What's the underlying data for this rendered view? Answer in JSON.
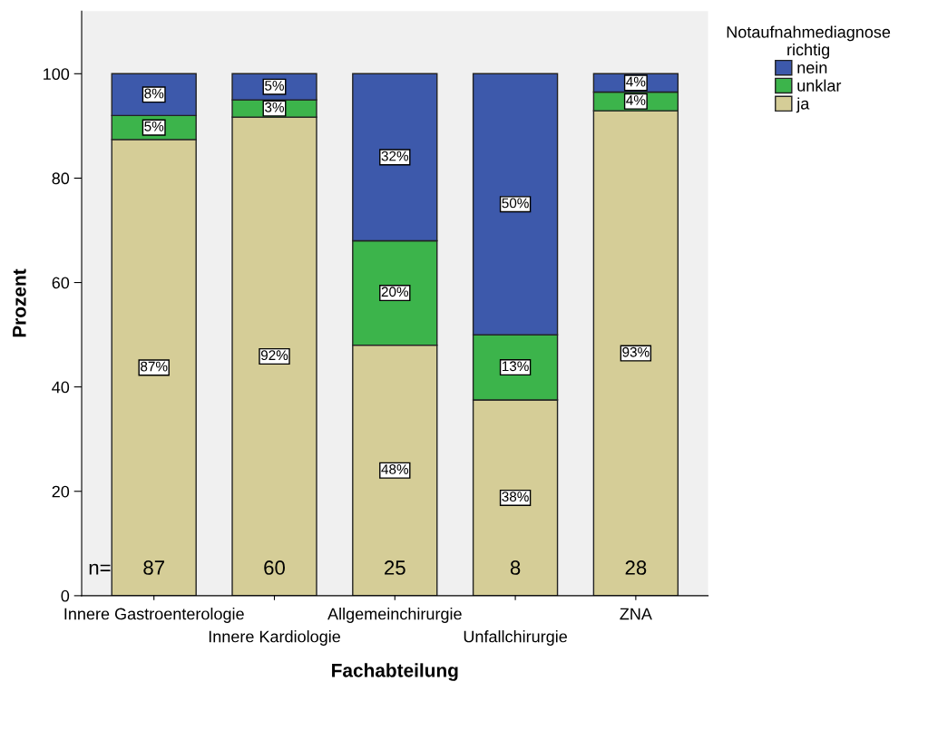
{
  "chart_data": {
    "type": "bar",
    "stacked": true,
    "xlabel": "Fachabteilung",
    "ylabel": "Prozent",
    "legend_title": "Notaufnahmediagnose\nrichtig",
    "legend": "top right",
    "categories": [
      "Innere Gastroenterologie",
      "Innere Kardiologie",
      "Allgemeinchirurgie",
      "Unfallchirurgie",
      "ZNA"
    ],
    "series": [
      {
        "name": "ja",
        "color": "#d5cd97",
        "values": [
          87.4,
          91.7,
          48.0,
          37.5,
          92.9
        ],
        "value_labels": [
          "87%",
          "92%",
          "48%",
          "38%",
          "93%"
        ]
      },
      {
        "name": "unklar",
        "color": "#3cb44b",
        "values": [
          4.6,
          3.3,
          20.0,
          12.5,
          3.6
        ],
        "value_labels": [
          "5%",
          "3%",
          "20%",
          "13%",
          "4%"
        ]
      },
      {
        "name": "nein",
        "color": "#3d59ab",
        "values": [
          8.0,
          5.0,
          32.0,
          50.0,
          3.5
        ],
        "value_labels": [
          "8%",
          "5%",
          "32%",
          "50%",
          "4%"
        ]
      }
    ],
    "ylim": [
      0,
      112
    ],
    "yticks": [
      0,
      20,
      40,
      60,
      80,
      100
    ],
    "grid": false,
    "annotations": [
      "n=",
      "87",
      "60",
      "25",
      "8",
      "28"
    ]
  }
}
